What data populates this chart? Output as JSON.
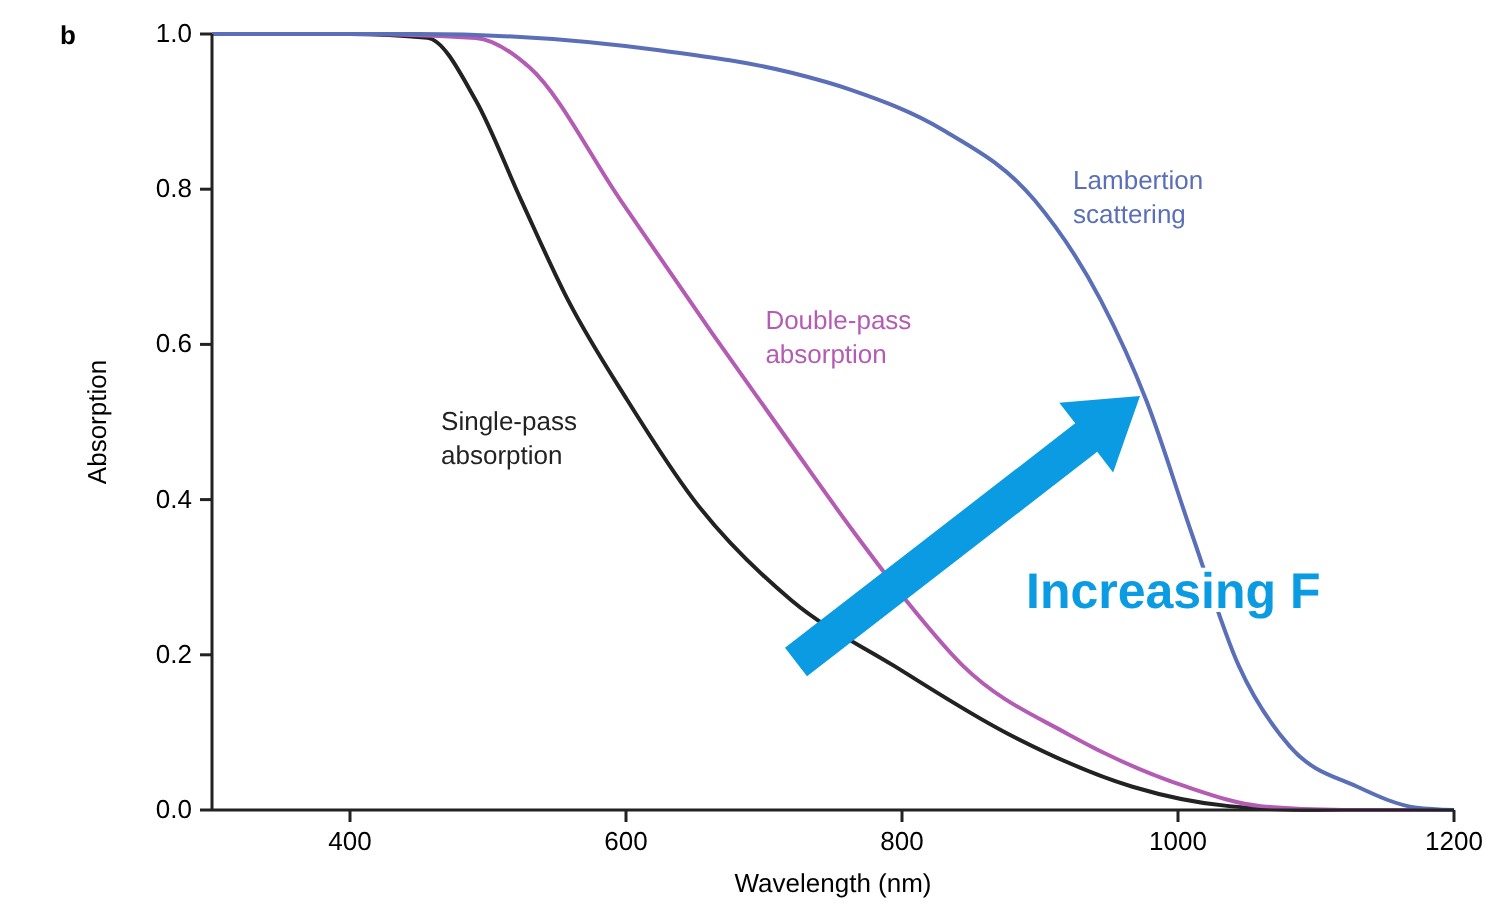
{
  "chart_data": {
    "type": "line",
    "xlabel": "Wavelength (nm)",
    "ylabel": "Absorption",
    "annotations": [
      "b",
      "Increasing F"
    ],
    "xlim": [
      300,
      1200
    ],
    "xticks": [
      400,
      600,
      800,
      1000,
      1200
    ],
    "ylim": [
      0,
      1
    ],
    "yticks": [
      {
        "value": 0,
        "label": "0.0"
      },
      {
        "value": 0.2,
        "label": "0.2"
      },
      {
        "value": 0.4,
        "label": "0.4"
      },
      {
        "value": 0.6,
        "label": "0.6"
      },
      {
        "value": 0.8,
        "label": "0.8"
      },
      {
        "value": 1,
        "label": "1.0"
      }
    ],
    "grid": false,
    "marker": "none",
    "line_style": "solid",
    "series": [
      {
        "name": "Single-pass absorption",
        "color": "#222222",
        "x": [
          300,
          400,
          456,
          491,
          524,
          558,
          601,
          649,
          720,
          794,
          877,
          967,
          1037,
          1100,
          1200
        ],
        "values": [
          1,
          1,
          0.995,
          0.915,
          0.786,
          0.657,
          0.528,
          0.4,
          0.27,
          0.186,
          0.098,
          0.03,
          0.005,
          0,
          0
        ]
      },
      {
        "name": "Double-pass absorption",
        "color": "#b45cb4",
        "x": [
          300,
          400,
          491,
          530,
          596,
          663,
          720,
          766,
          803,
          844,
          920,
          1006,
          1060,
          1120,
          1200
        ],
        "values": [
          1,
          1,
          0.995,
          0.957,
          0.786,
          0.613,
          0.47,
          0.356,
          0.27,
          0.186,
          0.098,
          0.03,
          0.005,
          0,
          0
        ]
      },
      {
        "name": "Lambertion scattering",
        "color": "#5a6fb8",
        "x": [
          300,
          450,
          624,
          720,
          763,
          830,
          896,
          944,
          977,
          1010,
          1044,
          1081,
          1130,
          1173,
          1200
        ],
        "values": [
          1,
          1,
          0.979,
          0.95,
          0.928,
          0.876,
          0.786,
          0.657,
          0.528,
          0.356,
          0.186,
          0.082,
          0.03,
          0.003,
          0
        ]
      }
    ]
  }
}
